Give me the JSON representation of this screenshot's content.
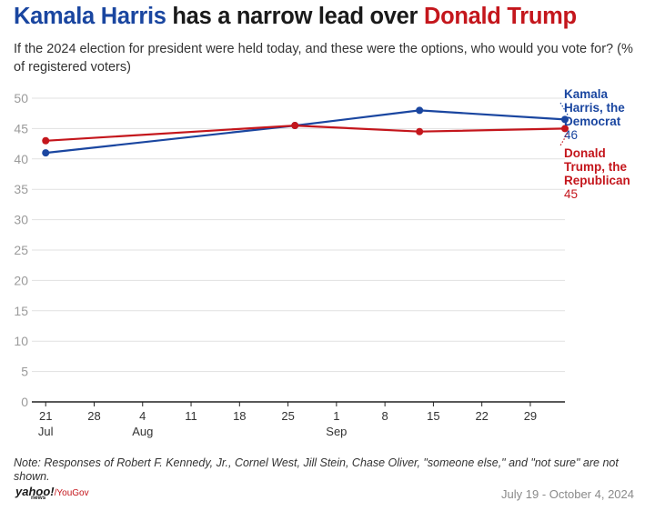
{
  "title": {
    "part1": "Kamala Harris",
    "part2": " has a narrow lead over ",
    "part3": "Donald Trump"
  },
  "subtitle": "If the 2024 election for president were held today, and these were the options, who would you vote for? (% of registered voters)",
  "note": "Note: Responses of Robert F. Kennedy, Jr., Cornel West, Jill Stein, Chase Oliver, \"someone else,\" and \"not sure\" are not shown.",
  "source": {
    "yahoo": "yahoo!",
    "news": "news",
    "yougov": "/YouGov"
  },
  "date_range": "July 19 - October 4, 2024",
  "colors": {
    "harris": "#1a46a0",
    "trump": "#c4161c",
    "grid": "#e1e1e1",
    "axis": "#222222",
    "tick": "#9b9b9b"
  },
  "chart_data": {
    "type": "line",
    "x_axis": {
      "min": "2024-07-19",
      "max": "2024-10-04",
      "ticks": [
        {
          "date": "2024-07-21",
          "label": "21",
          "sublabel": "Jul"
        },
        {
          "date": "2024-07-28",
          "label": "28",
          "sublabel": ""
        },
        {
          "date": "2024-08-04",
          "label": "4",
          "sublabel": "Aug"
        },
        {
          "date": "2024-08-11",
          "label": "11",
          "sublabel": ""
        },
        {
          "date": "2024-08-18",
          "label": "18",
          "sublabel": ""
        },
        {
          "date": "2024-08-25",
          "label": "25",
          "sublabel": ""
        },
        {
          "date": "2024-09-01",
          "label": "1",
          "sublabel": "Sep"
        },
        {
          "date": "2024-09-08",
          "label": "8",
          "sublabel": ""
        },
        {
          "date": "2024-09-15",
          "label": "15",
          "sublabel": ""
        },
        {
          "date": "2024-09-22",
          "label": "22",
          "sublabel": ""
        },
        {
          "date": "2024-09-29",
          "label": "29",
          "sublabel": ""
        }
      ]
    },
    "y_axis": {
      "min": 0,
      "max": 50,
      "ticks": [
        0,
        5,
        10,
        15,
        20,
        25,
        30,
        35,
        40,
        45,
        50
      ]
    },
    "grid": true,
    "series": [
      {
        "name": "Kamala Harris, the Democrat",
        "end_label": [
          "Kamala",
          "Harris, the",
          "Democrat"
        ],
        "end_value": "46",
        "color": "#1a46a0",
        "points": [
          {
            "x": "2024-07-21",
            "y": 41
          },
          {
            "x": "2024-08-26",
            "y": 45.5
          },
          {
            "x": "2024-09-13",
            "y": 48
          },
          {
            "x": "2024-10-04",
            "y": 46.5
          }
        ]
      },
      {
        "name": "Donald Trump, the Republican",
        "end_label": [
          "Donald",
          "Trump, the",
          "Republican"
        ],
        "end_value": "45",
        "color": "#c4161c",
        "points": [
          {
            "x": "2024-07-21",
            "y": 43
          },
          {
            "x": "2024-08-26",
            "y": 45.5
          },
          {
            "x": "2024-09-13",
            "y": 44.5
          },
          {
            "x": "2024-10-04",
            "y": 45
          }
        ]
      }
    ]
  }
}
